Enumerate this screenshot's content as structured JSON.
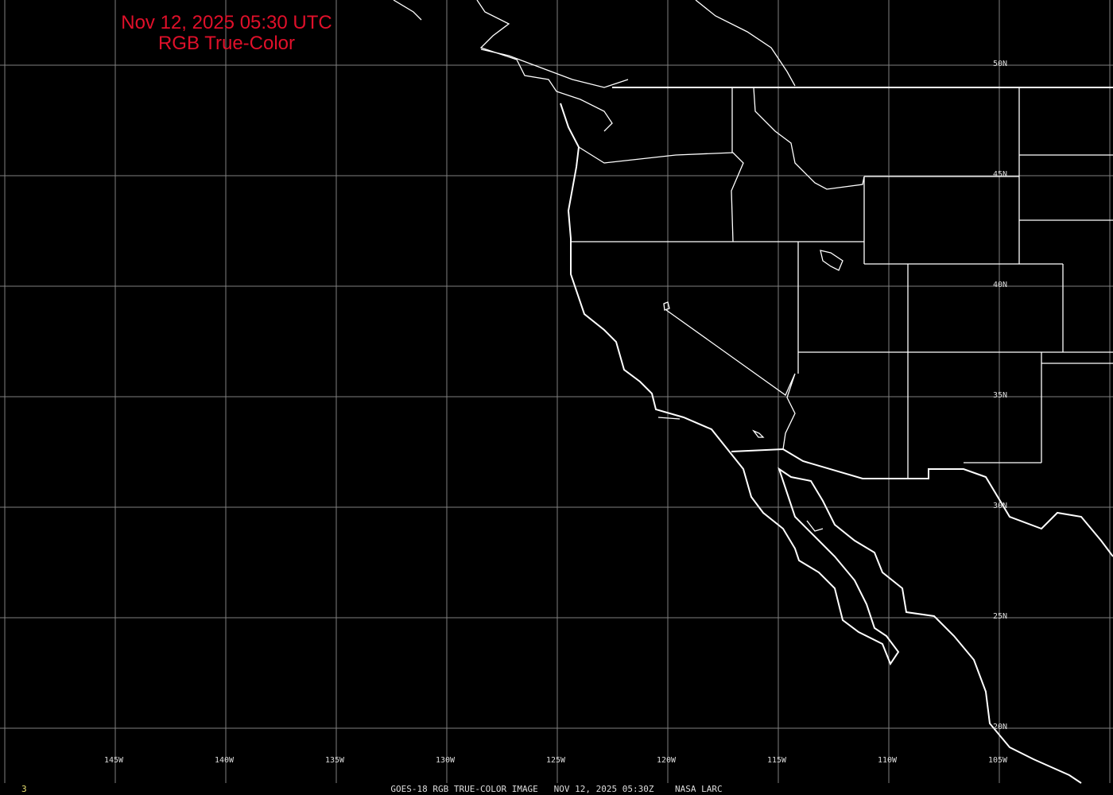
{
  "title": {
    "line1": "Nov 12, 2025 05:30 UTC",
    "line2": "RGB True-Color"
  },
  "caption": "GOES-18 RGB TRUE-COLOR IMAGE   NOV 12, 2025 05:30Z    NASA LARC",
  "frame_number": "3",
  "longitude_labels": [
    "145W",
    "140W",
    "135W",
    "130W",
    "125W",
    "120W",
    "115W",
    "110W",
    "105W"
  ],
  "latitude_labels": [
    "50N",
    "45N",
    "40N",
    "35N",
    "30N",
    "25N",
    "20N"
  ],
  "colors": {
    "background": "#000000",
    "title": "#e0102a",
    "grid": "#808080",
    "coastline": "#ffffff",
    "frame_number": "#e8e070"
  }
}
